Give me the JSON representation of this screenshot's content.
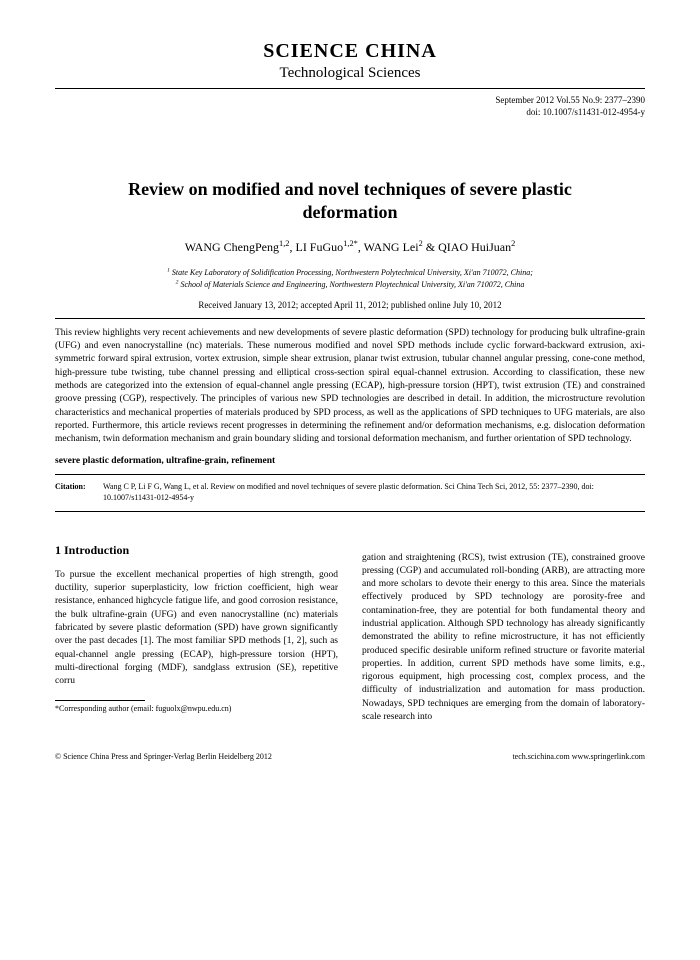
{
  "journal": {
    "name": "SCIENCE CHINA",
    "subtitle": "Technological Sciences"
  },
  "issue": {
    "line1": "September 2012   Vol.55   No.9: 2377–2390",
    "doi": "doi: 10.1007/s11431-012-4954-y"
  },
  "title": "Review on modified and novel techniques of severe plastic deformation",
  "authors_html": "WANG ChengPeng<sup>1,2</sup>, LI FuGuo<sup>1,2*</sup>, WANG Lei<sup>2</sup> & QIAO HuiJuan<sup>2</sup>",
  "affiliations": {
    "a1": "State Key Laboratory of Solidification Processing, Northwestern Polytechnical University, Xi'an 710072, China;",
    "a2": "School of Materials Science and Engineering, Northwestern Ploytechnical University, Xi'an 710072, China"
  },
  "dates": "Received January 13, 2012; accepted April 11, 2012; published online July 10, 2012",
  "abstract": "This review highlights very recent achievements and new developments of severe plastic deformation (SPD) technology for producing bulk ultrafine-grain (UFG) and even nanocrystalline (nc) materials. These numerous modified and novel SPD methods include cyclic forward-backward extrusion, axi-symmetric forward spiral extrusion, vortex extrusion, simple shear extrusion, planar twist extrusion, tubular channel angular pressing, cone-cone method, high-pressure tube twisting, tube channel pressing and elliptical cross-section spiral equal-channel extrusion. According to classification, these new methods are categorized into the extension of equal-channel angle pressing (ECAP), high-pressure torsion (HPT), twist extrusion (TE) and constrained groove pressing (CGP), respectively. The principles of various new SPD technologies are described in detail. In addition, the microstructure revolution characteristics and mechanical properties of materials produced by SPD process, as well as the applications of SPD techniques to UFG materials, are also reported. Furthermore, this article reviews recent progresses in determining the refinement and/or deformation mechanisms, e.g. dislocation deformation mechanism, twin deformation mechanism and grain boundary sliding and torsional deformation mechanism, and further orientation of SPD technology.",
  "keywords": "severe plastic deformation, ultrafine-grain, refinement",
  "citation": {
    "label": "Citation:",
    "text": "Wang C P, Li F G, Wang L, et al. Review on modified and novel techniques of severe plastic deformation. Sci China Tech Sci, 2012, 55: 2377–2390, doi: 10.1007/s11431-012-4954-y"
  },
  "section1": {
    "heading": "1   Introduction",
    "body_col1": "To pursue the excellent mechanical properties of high strength, good ductility, superior superplasticity, low friction coefficient, high wear resistance, enhanced highcycle fatigue life, and good corrosion resistance, the bulk ultrafine-grain (UFG) and even nanocrystalline (nc) materials fabricated by severe plastic deformation (SPD) have grown significantly over the past decades [1]. The most familiar SPD methods [1, 2], such as equal-channel angle pressing (ECAP), high-pressure torsion (HPT), multi-directional forging (MDF), sandglass extrusion (SE), repetitive corru",
    "body_col2": "gation and straightening (RCS), twist extrusion (TE), constrained groove pressing (CGP) and accumulated roll-bonding (ARB), are attracting more and more scholars to devote their energy to this area. Since the materials effectively produced by SPD technology are porosity-free and contamination-free, they are potential for both fundamental theory and industrial application. Although SPD technology has already significantly demonstrated the ability to refine microstructure, it has not efficiently produced specific desirable uniform refined structure or favorite material properties. In addition, current SPD methods have some limits, e.g., rigorous equipment, high processing cost, complex process, and the difficulty of industrialization and automation for mass production. Nowadays, SPD techniques are emerging from the domain of laboratory-scale research into"
  },
  "footnote": "*Corresponding author (email: fuguolx@nwpu.edu.cn)",
  "footer": {
    "left": "© Science China Press and Springer-Verlag Berlin Heidelberg 2012",
    "right": "tech.scichina.com   www.springerlink.com"
  }
}
